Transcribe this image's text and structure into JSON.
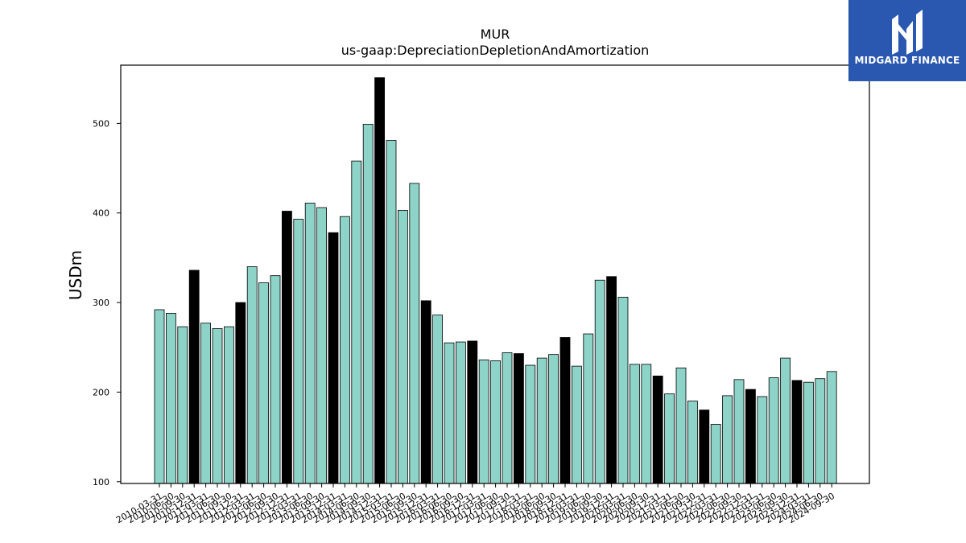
{
  "chart_data": {
    "type": "bar",
    "title": "MUR",
    "subtitle": "us-gaap:DepreciationDepletionAndAmortization",
    "ylabel": "USDm",
    "xlabel": "",
    "ylim": [
      98,
      565
    ],
    "yticks": [
      100,
      200,
      300,
      400,
      500
    ],
    "grid": false,
    "colors": {
      "quarter": "#8dd3c7",
      "annual": "#000000",
      "edge": "#000000"
    },
    "categories": [
      "2010-03-31",
      "2010-06-30",
      "2010-09-30",
      "2010-12-31",
      "2011-03-31",
      "2011-06-30",
      "2011-09-30",
      "2011-12-31",
      "2012-03-31",
      "2012-06-30",
      "2012-09-30",
      "2012-12-31",
      "2013-03-31",
      "2013-06-30",
      "2013-09-30",
      "2013-12-31",
      "2014-03-31",
      "2014-06-30",
      "2014-09-30",
      "2014-12-31",
      "2015-03-31",
      "2015-06-30",
      "2015-09-30",
      "2015-12-31",
      "2016-03-31",
      "2016-06-30",
      "2016-09-30",
      "2016-12-31",
      "2017-03-31",
      "2017-06-30",
      "2017-09-30",
      "2017-12-31",
      "2018-03-31",
      "2018-06-30",
      "2018-09-30",
      "2018-12-31",
      "2019-03-31",
      "2019-06-30",
      "2019-09-30",
      "2019-12-31",
      "2020-03-31",
      "2020-06-30",
      "2020-09-30",
      "2020-12-31",
      "2021-03-31",
      "2021-06-30",
      "2021-09-30",
      "2021-12-31",
      "2022-03-31",
      "2022-06-30",
      "2022-09-30",
      "2022-12-31",
      "2023-03-31",
      "2023-06-30",
      "2023-09-30",
      "2023-12-31",
      "2024-03-31",
      "2024-06-30",
      "2024-09-30"
    ],
    "values": [
      292,
      288,
      273,
      336,
      277,
      271,
      273,
      300,
      340,
      322,
      330,
      402,
      393,
      411,
      406,
      378,
      396,
      458,
      499,
      551,
      481,
      403,
      433,
      302,
      286,
      255,
      256,
      257,
      236,
      235,
      244,
      243,
      230,
      238,
      242,
      261,
      229,
      265,
      325,
      329,
      306,
      231,
      231,
      218,
      198,
      227,
      190,
      180,
      164,
      196,
      214,
      203,
      195,
      216,
      238,
      213,
      211,
      215,
      223
    ],
    "annual": [
      false,
      false,
      false,
      true,
      false,
      false,
      false,
      true,
      false,
      false,
      false,
      true,
      false,
      false,
      false,
      true,
      false,
      false,
      false,
      true,
      false,
      false,
      false,
      true,
      false,
      false,
      false,
      true,
      false,
      false,
      false,
      true,
      false,
      false,
      false,
      true,
      false,
      false,
      false,
      true,
      false,
      false,
      false,
      true,
      false,
      false,
      false,
      true,
      false,
      false,
      false,
      true,
      false,
      false,
      false,
      true,
      false,
      false,
      false
    ]
  },
  "logo": {
    "brand": "MIDGARD FINANCE",
    "icon": "midgard-logo-icon",
    "background": "#2a57b0"
  }
}
